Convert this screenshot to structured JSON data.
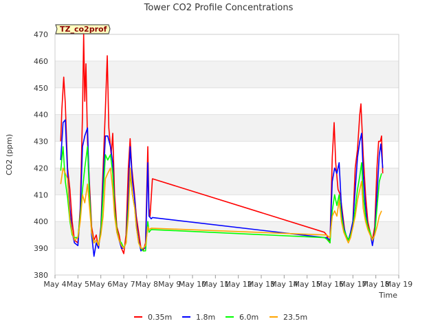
{
  "chart_data": {
    "type": "line",
    "title": "Tower CO2 Profile Concentrations",
    "xlabel": "Time",
    "ylabel": "CO2 (ppm)",
    "badge": "TZ_co2prof",
    "ylim": [
      380,
      470
    ],
    "yticks": [
      380,
      390,
      400,
      410,
      420,
      430,
      440,
      450,
      460,
      470
    ],
    "xlim": [
      4,
      19
    ],
    "xticks": [
      {
        "v": 4,
        "label": "May 4"
      },
      {
        "v": 5,
        "label": "May 5"
      },
      {
        "v": 6,
        "label": "May 6"
      },
      {
        "v": 7,
        "label": "May 7"
      },
      {
        "v": 8,
        "label": "May 8"
      },
      {
        "v": 9,
        "label": "May 9"
      },
      {
        "v": 10,
        "label": "May 10"
      },
      {
        "v": 11,
        "label": "May 11"
      },
      {
        "v": 12,
        "label": "May 12"
      },
      {
        "v": 13,
        "label": "May 13"
      },
      {
        "v": 14,
        "label": "May 14"
      },
      {
        "v": 15,
        "label": "May 15"
      },
      {
        "v": 16,
        "label": "May 16"
      },
      {
        "v": 17,
        "label": "May 17"
      },
      {
        "v": 18,
        "label": "May 18"
      },
      {
        "v": 19,
        "label": "May 19"
      }
    ],
    "series": [
      {
        "name": "0.35m",
        "color": "#ff0000",
        "points": [
          [
            4.25,
            430
          ],
          [
            4.3,
            442
          ],
          [
            4.38,
            454
          ],
          [
            4.45,
            444
          ],
          [
            4.55,
            420
          ],
          [
            4.65,
            412
          ],
          [
            4.75,
            400
          ],
          [
            4.85,
            393
          ],
          [
            5.0,
            392
          ],
          [
            5.1,
            405
          ],
          [
            5.2,
            440
          ],
          [
            5.25,
            470
          ],
          [
            5.3,
            445
          ],
          [
            5.35,
            459
          ],
          [
            5.42,
            430
          ],
          [
            5.5,
            415
          ],
          [
            5.6,
            398
          ],
          [
            5.7,
            393
          ],
          [
            5.8,
            395
          ],
          [
            5.9,
            390
          ],
          [
            6.0,
            398
          ],
          [
            6.1,
            420
          ],
          [
            6.2,
            442
          ],
          [
            6.28,
            462
          ],
          [
            6.35,
            435
          ],
          [
            6.45,
            425
          ],
          [
            6.52,
            433
          ],
          [
            6.6,
            410
          ],
          [
            6.7,
            398
          ],
          [
            6.8,
            395
          ],
          [
            6.9,
            390
          ],
          [
            7.0,
            388
          ],
          [
            7.1,
            395
          ],
          [
            7.2,
            420
          ],
          [
            7.28,
            431
          ],
          [
            7.35,
            420
          ],
          [
            7.45,
            412
          ],
          [
            7.55,
            402
          ],
          [
            7.65,
            396
          ],
          [
            7.75,
            390
          ],
          [
            7.85,
            389
          ],
          [
            7.95,
            392
          ],
          [
            8.05,
            428
          ],
          [
            8.1,
            405
          ],
          [
            8.15,
            402
          ],
          [
            8.25,
            416
          ],
          [
            15.75,
            396
          ],
          [
            15.85,
            395
          ],
          [
            16.0,
            392
          ],
          [
            16.1,
            424
          ],
          [
            16.18,
            437
          ],
          [
            16.25,
            422
          ],
          [
            16.35,
            412
          ],
          [
            16.45,
            410
          ],
          [
            16.55,
            403
          ],
          [
            16.65,
            396
          ],
          [
            16.75,
            393
          ],
          [
            16.85,
            394
          ],
          [
            17.0,
            400
          ],
          [
            17.1,
            420
          ],
          [
            17.2,
            427
          ],
          [
            17.3,
            440
          ],
          [
            17.35,
            444
          ],
          [
            17.45,
            425
          ],
          [
            17.55,
            410
          ],
          [
            17.65,
            400
          ],
          [
            17.75,
            396
          ],
          [
            17.85,
            393
          ],
          [
            17.95,
            398
          ],
          [
            18.05,
            420
          ],
          [
            18.12,
            430
          ],
          [
            18.2,
            430
          ],
          [
            18.25,
            432
          ],
          [
            18.3,
            418
          ]
        ]
      },
      {
        "name": "1.8m",
        "color": "#0000ff",
        "points": [
          [
            4.25,
            423
          ],
          [
            4.35,
            437
          ],
          [
            4.45,
            438
          ],
          [
            4.55,
            418
          ],
          [
            4.65,
            405
          ],
          [
            4.75,
            396
          ],
          [
            4.85,
            392
          ],
          [
            5.0,
            391
          ],
          [
            5.1,
            403
          ],
          [
            5.2,
            428
          ],
          [
            5.3,
            432
          ],
          [
            5.42,
            435
          ],
          [
            5.5,
            412
          ],
          [
            5.6,
            395
          ],
          [
            5.7,
            387
          ],
          [
            5.8,
            392
          ],
          [
            5.9,
            390
          ],
          [
            6.0,
            397
          ],
          [
            6.1,
            415
          ],
          [
            6.2,
            432
          ],
          [
            6.3,
            432
          ],
          [
            6.42,
            428
          ],
          [
            6.52,
            422
          ],
          [
            6.6,
            405
          ],
          [
            6.7,
            396
          ],
          [
            6.8,
            393
          ],
          [
            6.9,
            390
          ],
          [
            7.0,
            390
          ],
          [
            7.1,
            392
          ],
          [
            7.2,
            410
          ],
          [
            7.28,
            428
          ],
          [
            7.38,
            415
          ],
          [
            7.48,
            408
          ],
          [
            7.55,
            400
          ],
          [
            7.65,
            393
          ],
          [
            7.75,
            389
          ],
          [
            7.85,
            390
          ],
          [
            7.95,
            390
          ],
          [
            8.05,
            422
          ],
          [
            8.1,
            402
          ],
          [
            8.2,
            401
          ],
          [
            8.25,
            401.5
          ],
          [
            15.75,
            394
          ],
          [
            15.85,
            394
          ],
          [
            16.0,
            393
          ],
          [
            16.1,
            415
          ],
          [
            16.2,
            420
          ],
          [
            16.3,
            418
          ],
          [
            16.4,
            422
          ],
          [
            16.5,
            405
          ],
          [
            16.6,
            398
          ],
          [
            16.7,
            395
          ],
          [
            16.8,
            393
          ],
          [
            16.9,
            396
          ],
          [
            17.0,
            400
          ],
          [
            17.1,
            412
          ],
          [
            17.2,
            424
          ],
          [
            17.3,
            430
          ],
          [
            17.38,
            433
          ],
          [
            17.45,
            418
          ],
          [
            17.55,
            405
          ],
          [
            17.65,
            398
          ],
          [
            17.75,
            396
          ],
          [
            17.85,
            391
          ],
          [
            17.95,
            396
          ],
          [
            18.05,
            410
          ],
          [
            18.15,
            425
          ],
          [
            18.22,
            429
          ],
          [
            18.3,
            420
          ]
        ]
      },
      {
        "name": "6.0m",
        "color": "#00ff00",
        "points": [
          [
            4.25,
            419
          ],
          [
            4.35,
            428
          ],
          [
            4.45,
            415
          ],
          [
            4.55,
            409
          ],
          [
            4.65,
            400
          ],
          [
            4.75,
            395
          ],
          [
            4.85,
            394
          ],
          [
            5.0,
            394
          ],
          [
            5.1,
            402
          ],
          [
            5.2,
            412
          ],
          [
            5.3,
            420
          ],
          [
            5.42,
            428
          ],
          [
            5.5,
            410
          ],
          [
            5.6,
            396
          ],
          [
            5.7,
            392
          ],
          [
            5.8,
            393
          ],
          [
            5.9,
            391
          ],
          [
            6.0,
            396
          ],
          [
            6.1,
            410
          ],
          [
            6.2,
            425
          ],
          [
            6.3,
            423
          ],
          [
            6.42,
            425
          ],
          [
            6.52,
            418
          ],
          [
            6.6,
            404
          ],
          [
            6.7,
            397
          ],
          [
            6.8,
            393
          ],
          [
            6.9,
            392
          ],
          [
            7.0,
            390
          ],
          [
            7.1,
            392
          ],
          [
            7.2,
            405
          ],
          [
            7.28,
            418
          ],
          [
            7.38,
            410
          ],
          [
            7.48,
            405
          ],
          [
            7.55,
            398
          ],
          [
            7.65,
            392
          ],
          [
            7.75,
            390
          ],
          [
            7.85,
            389
          ],
          [
            7.95,
            389
          ],
          [
            8.05,
            400
          ],
          [
            8.1,
            396
          ],
          [
            8.2,
            397
          ],
          [
            15.75,
            394
          ],
          [
            15.85,
            393.5
          ],
          [
            16.0,
            392
          ],
          [
            16.1,
            404
          ],
          [
            16.2,
            410
          ],
          [
            16.3,
            406
          ],
          [
            16.4,
            410
          ],
          [
            16.5,
            402
          ],
          [
            16.6,
            397
          ],
          [
            16.7,
            395
          ],
          [
            16.8,
            393
          ],
          [
            16.9,
            395
          ],
          [
            17.0,
            398
          ],
          [
            17.1,
            405
          ],
          [
            17.2,
            412
          ],
          [
            17.3,
            417
          ],
          [
            17.38,
            422
          ],
          [
            17.45,
            410
          ],
          [
            17.55,
            402
          ],
          [
            17.65,
            398
          ],
          [
            17.75,
            396
          ],
          [
            17.85,
            393
          ],
          [
            17.95,
            395
          ],
          [
            18.05,
            405
          ],
          [
            18.15,
            415
          ],
          [
            18.25,
            418
          ]
        ]
      },
      {
        "name": "23.5m",
        "color": "#ffa500",
        "points": [
          [
            4.25,
            414
          ],
          [
            4.35,
            420
          ],
          [
            4.45,
            418
          ],
          [
            4.55,
            416
          ],
          [
            4.65,
            401
          ],
          [
            4.75,
            396
          ],
          [
            4.85,
            393
          ],
          [
            5.0,
            394
          ],
          [
            5.1,
            400
          ],
          [
            5.2,
            410
          ],
          [
            5.3,
            407
          ],
          [
            5.42,
            414
          ],
          [
            5.5,
            406
          ],
          [
            5.6,
            396
          ],
          [
            5.7,
            392
          ],
          [
            5.8,
            393
          ],
          [
            5.9,
            391
          ],
          [
            6.0,
            395
          ],
          [
            6.1,
            402
          ],
          [
            6.2,
            416
          ],
          [
            6.3,
            418
          ],
          [
            6.42,
            420
          ],
          [
            6.52,
            412
          ],
          [
            6.6,
            402
          ],
          [
            6.7,
            396
          ],
          [
            6.8,
            393
          ],
          [
            6.9,
            391
          ],
          [
            7.0,
            390
          ],
          [
            7.1,
            392
          ],
          [
            7.2,
            402
          ],
          [
            7.28,
            420
          ],
          [
            7.38,
            410
          ],
          [
            7.48,
            405
          ],
          [
            7.55,
            398
          ],
          [
            7.65,
            392
          ],
          [
            7.75,
            390
          ],
          [
            7.85,
            390
          ],
          [
            7.95,
            391
          ],
          [
            8.05,
            398
          ],
          [
            8.1,
            397
          ],
          [
            8.2,
            397.5
          ],
          [
            15.75,
            395
          ],
          [
            15.85,
            395
          ],
          [
            16.0,
            394
          ],
          [
            16.1,
            402
          ],
          [
            16.2,
            404
          ],
          [
            16.3,
            402
          ],
          [
            16.4,
            408
          ],
          [
            16.5,
            400
          ],
          [
            16.6,
            396
          ],
          [
            16.7,
            394
          ],
          [
            16.8,
            392
          ],
          [
            16.9,
            394
          ],
          [
            17.0,
            398
          ],
          [
            17.1,
            402
          ],
          [
            17.2,
            408
          ],
          [
            17.3,
            412
          ],
          [
            17.38,
            415
          ],
          [
            17.45,
            405
          ],
          [
            17.55,
            400
          ],
          [
            17.65,
            397
          ],
          [
            17.75,
            395
          ],
          [
            17.85,
            393
          ],
          [
            17.95,
            395
          ],
          [
            18.05,
            398
          ],
          [
            18.15,
            402
          ],
          [
            18.25,
            404
          ]
        ]
      }
    ]
  }
}
